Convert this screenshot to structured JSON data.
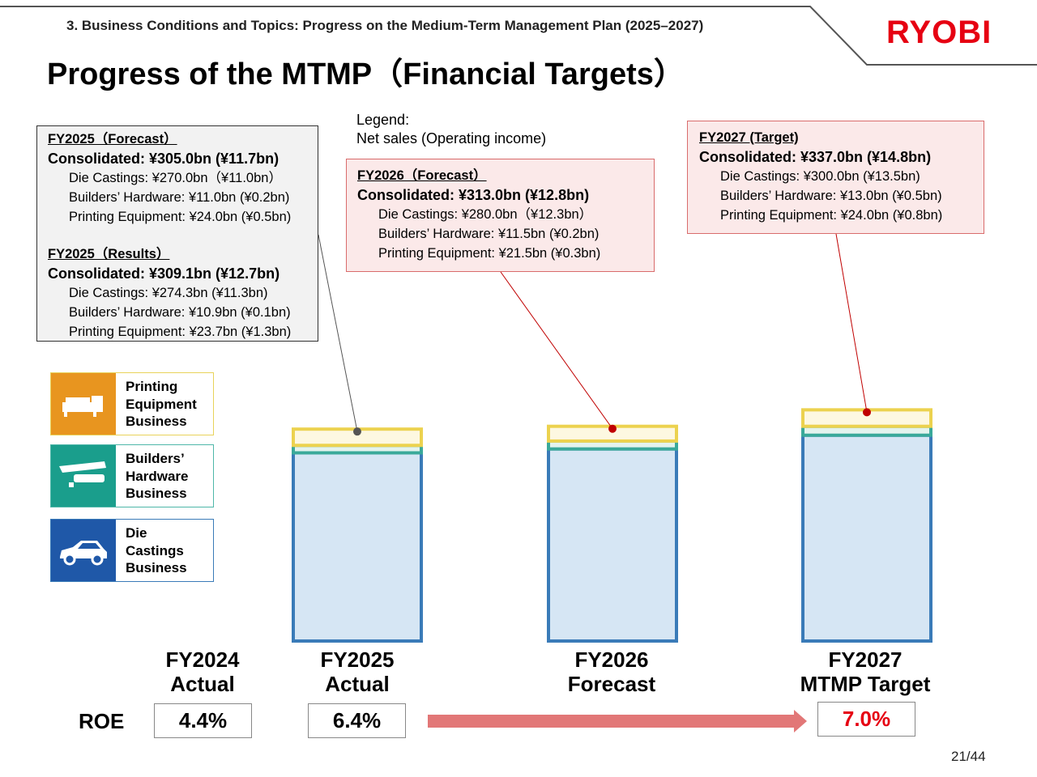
{
  "header": {
    "breadcrumb": "3. Business Conditions and Topics: Progress on the Medium-Term Management Plan (2025–2027)",
    "logo_text": "RYOBI",
    "title": "Progress of the MTMP（Financial Targets）"
  },
  "legend": {
    "line1": "Legend:",
    "line2": "Net sales (Operating income)"
  },
  "info_boxes": {
    "fy2025_forecast": {
      "heading": "FY2025（Forecast）",
      "consolidated": "Consolidated: ¥305.0bn (¥11.7bn)",
      "die_castings": "Die Castings: ¥270.0bn（¥11.0bn）",
      "builders_hardware": "Builders’ Hardware: ¥11.0bn (¥0.2bn)",
      "printing_equipment": "Printing Equipment: ¥24.0bn (¥0.5bn)"
    },
    "fy2025_results": {
      "heading": "FY2025（Results）",
      "consolidated": "Consolidated: ¥309.1bn (¥12.7bn)",
      "die_castings": "Die Castings: ¥274.3bn (¥11.3bn)",
      "builders_hardware": "Builders’ Hardware: ¥10.9bn (¥0.1bn)",
      "printing_equipment": "Printing Equipment: ¥23.7bn (¥1.3bn)"
    },
    "fy2026_forecast": {
      "heading": "FY2026（Forecast）",
      "consolidated": "Consolidated: ¥313.0bn (¥12.8bn)",
      "die_castings": "Die Castings: ¥280.0bn（¥12.3bn）",
      "builders_hardware": "Builders’ Hardware: ¥11.5bn (¥0.2bn)",
      "printing_equipment": "Printing Equipment: ¥21.5bn (¥0.3bn)"
    },
    "fy2027_target": {
      "heading": "FY2027 (Target)",
      "consolidated": "Consolidated: ¥337.0bn (¥14.8bn)",
      "die_castings": "Die Castings: ¥300.0bn (¥13.5bn)",
      "builders_hardware": "Builders’ Hardware: ¥13.0bn (¥0.5bn)",
      "printing_equipment": "Printing Equipment: ¥24.0bn (¥0.8bn)"
    }
  },
  "segment_legend": [
    {
      "label": "Printing\nEquipment\nBusiness",
      "color": "#e8951f",
      "border": "#e8d25a",
      "icon": "printing-press-icon"
    },
    {
      "label": "Builders’\nHardware\nBusiness",
      "color": "#1a9e8c",
      "border": "#4fb7a9",
      "icon": "door-closer-icon"
    },
    {
      "label": "Die\nCastings\nBusiness",
      "color": "#1f58a8",
      "border": "#3a7bb8",
      "icon": "car-icon"
    }
  ],
  "chart_data": {
    "type": "bar",
    "stacked": true,
    "title": "Progress of the MTMP (Financial Targets)",
    "unit": "¥bn (net sales)",
    "categories": [
      "FY2024\nActual",
      "FY2025\nActual",
      "FY2026\nForecast",
      "FY2027\nMTMP Target"
    ],
    "series": [
      {
        "name": "Die Castings Business",
        "values": [
          null,
          274.3,
          280.0,
          300.0
        ],
        "fill": "#d6e6f4",
        "stroke": "#3a7bb8"
      },
      {
        "name": "Builders’ Hardware Business",
        "values": [
          null,
          10.9,
          11.5,
          13.0
        ],
        "fill": "#e3f3ee",
        "stroke": "#3aa99a"
      },
      {
        "name": "Printing Equipment Business",
        "values": [
          null,
          23.7,
          21.5,
          24.0
        ],
        "fill": "#fdf8e1",
        "stroke": "#ecd24f"
      }
    ],
    "totals": [
      null,
      309.1,
      313.0,
      337.0
    ],
    "roe": {
      "label": "ROE",
      "values": [
        "4.4%",
        "6.4%",
        null,
        "7.0%"
      ],
      "target_color": "#e60012"
    },
    "colors": {
      "arrow": "#e27777",
      "callout_gray": "#555555",
      "callout_red": "#c00000"
    }
  },
  "page": {
    "number": "21/44"
  }
}
